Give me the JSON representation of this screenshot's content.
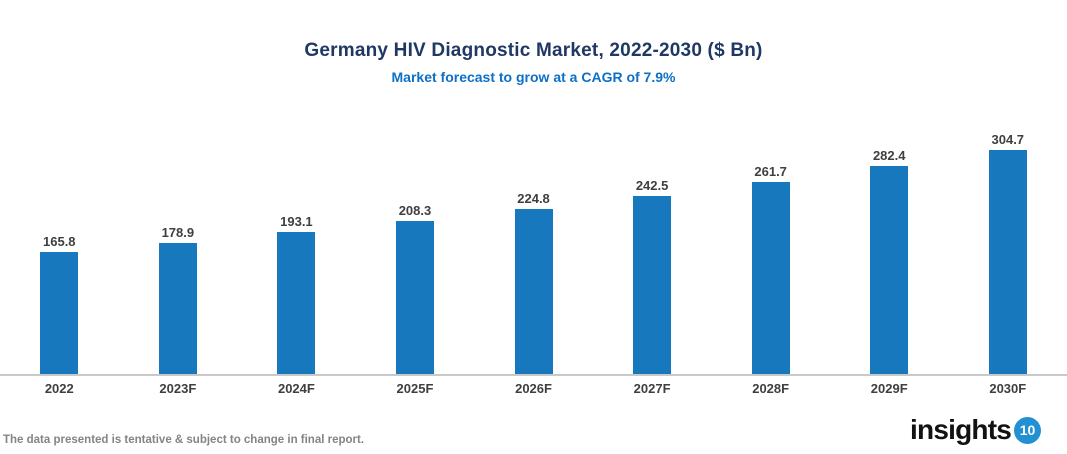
{
  "chart_data": {
    "type": "bar",
    "title": "Germany HIV Diagnostic Market, 2022-2030 ($ Bn)",
    "subtitle": "Market forecast to grow at a CAGR of 7.9%",
    "categories": [
      "2022",
      "2023F",
      "2024F",
      "2025F",
      "2026F",
      "2027F",
      "2028F",
      "2029F",
      "2030F"
    ],
    "values": [
      165.8,
      178.9,
      193.1,
      208.3,
      224.8,
      242.5,
      261.7,
      282.4,
      304.7
    ],
    "xlabel": "",
    "ylabel": "",
    "ylim": [
      0,
      320
    ],
    "grid": false,
    "legend": false,
    "data_labels": true,
    "bar_color": "#1878be",
    "title_color": "#1f3864",
    "subtitle_color": "#0d70c6"
  },
  "footer": {
    "disclaimer": "The data presented is tentative & subject to change in final report.",
    "logo_text": "insights",
    "logo_badge": "10",
    "logo_badge_color": "#2191d3"
  }
}
